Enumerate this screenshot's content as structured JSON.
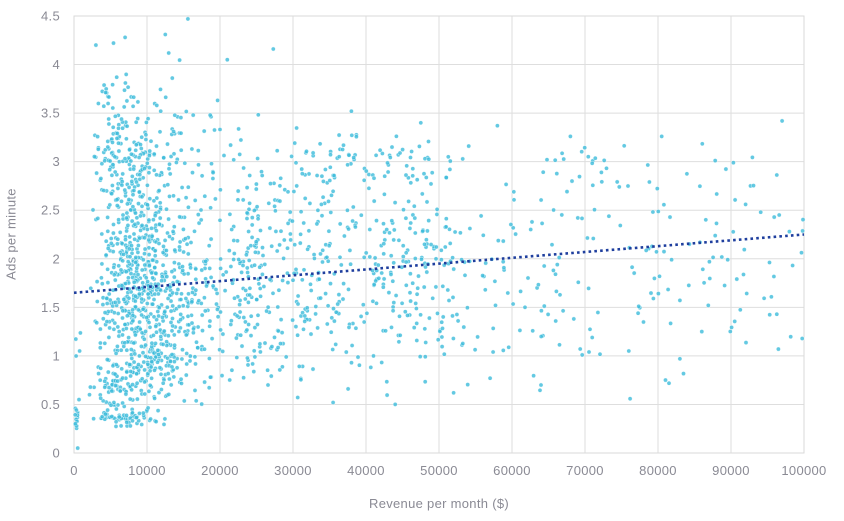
{
  "chart_data": {
    "type": "scatter",
    "title": "",
    "xlabel": "Revenue per month ($)",
    "ylabel": "Ads per minute",
    "xlim": [
      0,
      100000
    ],
    "ylim": [
      0,
      4.5
    ],
    "grid": true,
    "legend": false,
    "x_ticks": [
      {
        "v": 0,
        "label": "0"
      },
      {
        "v": 10000,
        "label": "10000"
      },
      {
        "v": 20000,
        "label": "20000"
      },
      {
        "v": 30000,
        "label": "30000"
      },
      {
        "v": 40000,
        "label": "40000"
      },
      {
        "v": 50000,
        "label": "50000"
      },
      {
        "v": 60000,
        "label": "60000"
      },
      {
        "v": 70000,
        "label": "70000"
      },
      {
        "v": 80000,
        "label": "80000"
      },
      {
        "v": 90000,
        "label": "90000"
      },
      {
        "v": 100000,
        "label": "100000"
      }
    ],
    "y_ticks": [
      {
        "v": 0,
        "label": "0"
      },
      {
        "v": 0.5,
        "label": "0.5"
      },
      {
        "v": 1,
        "label": "1"
      },
      {
        "v": 1.5,
        "label": "1.5"
      },
      {
        "v": 2,
        "label": "2"
      },
      {
        "v": 2.5,
        "label": "2.5"
      },
      {
        "v": 3,
        "label": "3"
      },
      {
        "v": 3.5,
        "label": "3.5"
      },
      {
        "v": 4,
        "label": "4"
      },
      {
        "v": 4.5,
        "label": "4.5"
      }
    ],
    "trendline": {
      "style": "dotted",
      "x": [
        0,
        100000
      ],
      "y": [
        1.65,
        2.25
      ]
    },
    "n_points_approx": 1950,
    "point_generation": {
      "seed": 1337,
      "components": [
        {
          "name": "axis-strip",
          "n": 15,
          "x": {
            "dist": "uniform",
            "min": 0,
            "max": 700
          },
          "y": {
            "dist": "uniform",
            "min": 0.24,
            "max": 0.56
          }
        },
        {
          "name": "axis-strip-upper",
          "n": 4,
          "x": {
            "dist": "uniform",
            "min": 0,
            "max": 900
          },
          "y": {
            "dist": "uniform",
            "min": 0.9,
            "max": 1.7
          }
        },
        {
          "name": "core-left",
          "n": 760,
          "x": {
            "dist": "lognormal",
            "mu": 9.25,
            "sigma": 0.52,
            "min": 1000,
            "max": 33500
          },
          "y": {
            "dist": "normal",
            "mean": 1.7,
            "sd": 0.55,
            "min": 0.5,
            "max": 3.15
          }
        },
        {
          "name": "upper-left",
          "n": 250,
          "x": {
            "dist": "lognormal",
            "mu": 9.05,
            "sigma": 0.5,
            "min": 1500,
            "max": 30000
          },
          "y": {
            "dist": "normal",
            "mean": 3.05,
            "sd": 0.4,
            "min": 2.35,
            "max": 4.45
          }
        },
        {
          "name": "low-stripe",
          "n": 70,
          "x": {
            "dist": "normal",
            "mean": 7000,
            "sd": 2600,
            "min": 2600,
            "max": 16000
          },
          "y": {
            "dist": "normal",
            "mean": 0.37,
            "sd": 0.055,
            "min": 0.27,
            "max": 0.5
          }
        },
        {
          "name": "rising-low-band",
          "n": 150,
          "x": {
            "dist": "normal",
            "mean": 9000,
            "sd": 4500,
            "min": 2000,
            "max": 21000
          },
          "y": {
            "dist": "normal",
            "mean": 0.5,
            "sd": 0.16,
            "xslope": 3.8e-05,
            "min": 0.3,
            "max": 1.45
          }
        },
        {
          "name": "mid-cloud",
          "n": 420,
          "x": {
            "dist": "uniform",
            "min": 21500,
            "max": 52000
          },
          "y": {
            "dist": "normal",
            "mean": 1.95,
            "sd": 0.62,
            "min": 0.45,
            "max": 3.4
          }
        },
        {
          "name": "mid-upper-band",
          "n": 55,
          "x": {
            "dist": "uniform",
            "min": 30000,
            "max": 49000
          },
          "y": {
            "dist": "normal",
            "mean": 3.0,
            "sd": 0.14,
            "min": 2.72,
            "max": 3.3
          }
        },
        {
          "name": "right-sparse",
          "n": 185,
          "x": {
            "dist": "uniform",
            "min": 52000,
            "max": 100000,
            "pow": 1.25
          },
          "y": {
            "dist": "normal",
            "mean": 2.0,
            "sd": 0.66,
            "min": 0.55,
            "max": 3.35
          }
        },
        {
          "name": "right-upper-cluster",
          "n": 16,
          "x": {
            "dist": "uniform",
            "min": 64000,
            "max": 73000
          },
          "y": {
            "dist": "normal",
            "mean": 3.05,
            "sd": 0.12,
            "min": 2.8,
            "max": 3.3
          }
        }
      ]
    },
    "highlight_points": [
      [
        15600,
        4.47
      ],
      [
        7000,
        4.28
      ],
      [
        12500,
        4.31
      ],
      [
        3000,
        4.2
      ],
      [
        27300,
        4.16
      ],
      [
        21000,
        4.05
      ],
      [
        38000,
        3.52
      ],
      [
        47500,
        3.4
      ],
      [
        58000,
        3.37
      ],
      [
        68000,
        3.26
      ],
      [
        80500,
        3.26
      ],
      [
        97000,
        3.42
      ],
      [
        92000,
        2.56
      ],
      [
        98000,
        2.28
      ],
      [
        86000,
        1.25
      ],
      [
        96500,
        1.07
      ],
      [
        83000,
        0.97
      ],
      [
        76000,
        1.05
      ],
      [
        57000,
        0.77
      ],
      [
        64000,
        1.2
      ],
      [
        500,
        0.05
      ],
      [
        44000,
        0.5
      ],
      [
        35500,
        0.52
      ],
      [
        52000,
        0.62
      ]
    ]
  },
  "colors": {
    "background": "#ffffff",
    "marker": "#3cbbdb",
    "marker_stroke": "#ffffff",
    "trendline": "#1f3f9e",
    "gridline": "#dedede",
    "plot_border": "#d9d9d9",
    "tick_label": "#8a8a94",
    "axis_title": "#8a8a94"
  }
}
